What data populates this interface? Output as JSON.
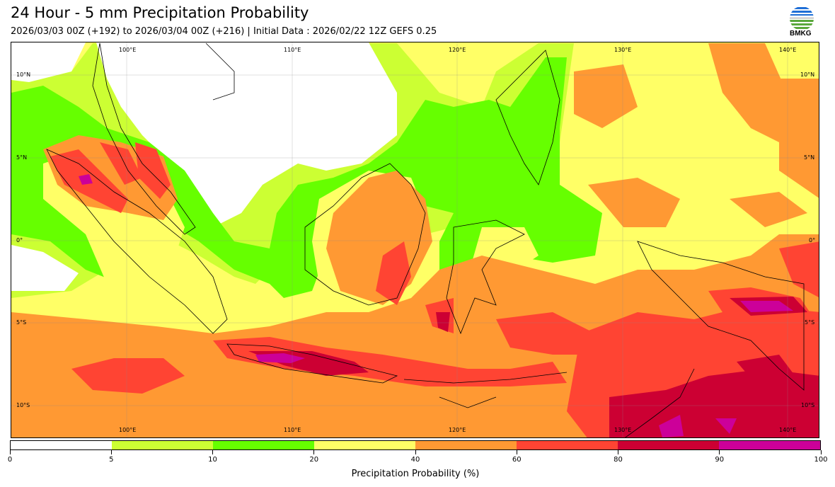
{
  "header": {
    "title": "24 Hour - 5 mm Precipitation Probability",
    "subtitle": "2026/03/03 00Z (+192) to 2026/03/04 00Z (+216) | Initial Data : 2026/02/22 12Z GEFS 0.25",
    "logo_text": "BMKG"
  },
  "map": {
    "lon_labels": [
      "100°E",
      "110°E",
      "120°E",
      "130°E",
      "140°E"
    ],
    "lat_labels_left": [
      "10°N",
      "5°N",
      "0°",
      "5°S",
      "10°S"
    ],
    "lat_labels_right": [
      "10°N",
      "5°N",
      "0°",
      "5°S",
      "10°S"
    ]
  },
  "colorbar": {
    "label": "Precipitation Probability (%)",
    "ticks": [
      "0",
      "5",
      "10",
      "20",
      "40",
      "60",
      "80",
      "90",
      "100"
    ],
    "colors": [
      "#ffffff",
      "#ccff33",
      "#66ff00",
      "#ffff66",
      "#ff9933",
      "#ff4433",
      "#cc0033",
      "#cc0099"
    ]
  }
}
